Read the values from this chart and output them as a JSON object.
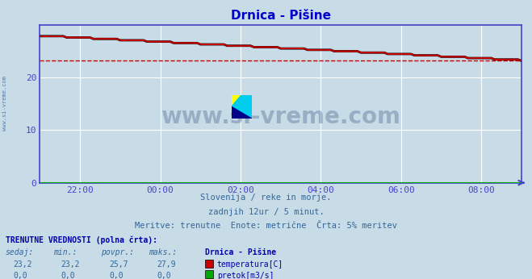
{
  "title": "Drnica - Pišine",
  "subtitle1": "Slovenija / reke in morje.",
  "subtitle2": "zadnjih 12ur / 5 minut.",
  "subtitle3": "Meritve: trenutne  Enote: metrične  Črta: 5% meritev",
  "current_label": "TRENUTNE VREDNOSTI (polna črta):",
  "col_headers": [
    "sedaj:",
    "min.:",
    "povpr.:",
    "maks.:"
  ],
  "station_header": "Drnica - Pišine",
  "row1_vals": [
    "23,2",
    "23,2",
    "25,7",
    "27,9"
  ],
  "row1_label": "temperatura[C]",
  "row1_color": "#cc0000",
  "row2_vals": [
    "0,0",
    "0,0",
    "0,0",
    "0,0"
  ],
  "row2_label": "pretok[m3/s]",
  "row2_color": "#00aa00",
  "bg_color": "#c8dce8",
  "plot_bg": "#c8dce8",
  "grid_color_white": "#ffffff",
  "grid_color_pink": "#f0c0c0",
  "axis_color": "#4444cc",
  "title_color": "#0000cc",
  "text_color": "#336699",
  "bold_text_color": "#0000aa",
  "x_ticks": [
    "22:00",
    "00:00",
    "02:00",
    "04:00",
    "06:00",
    "08:00"
  ],
  "x_tick_positions": [
    12,
    36,
    60,
    84,
    108,
    132
  ],
  "y_ticks": [
    0,
    10,
    20
  ],
  "ylim": [
    0,
    30
  ],
  "xlim": [
    0,
    144
  ],
  "t_start": 27.9,
  "t_end": 23.2,
  "avg_line_value": 23.2,
  "avg_line_color": "#cc0000",
  "watermark": "www.si-vreme.com",
  "watermark_color": "#1a3a6a",
  "left_watermark_color": "#336699",
  "n_points": 145
}
